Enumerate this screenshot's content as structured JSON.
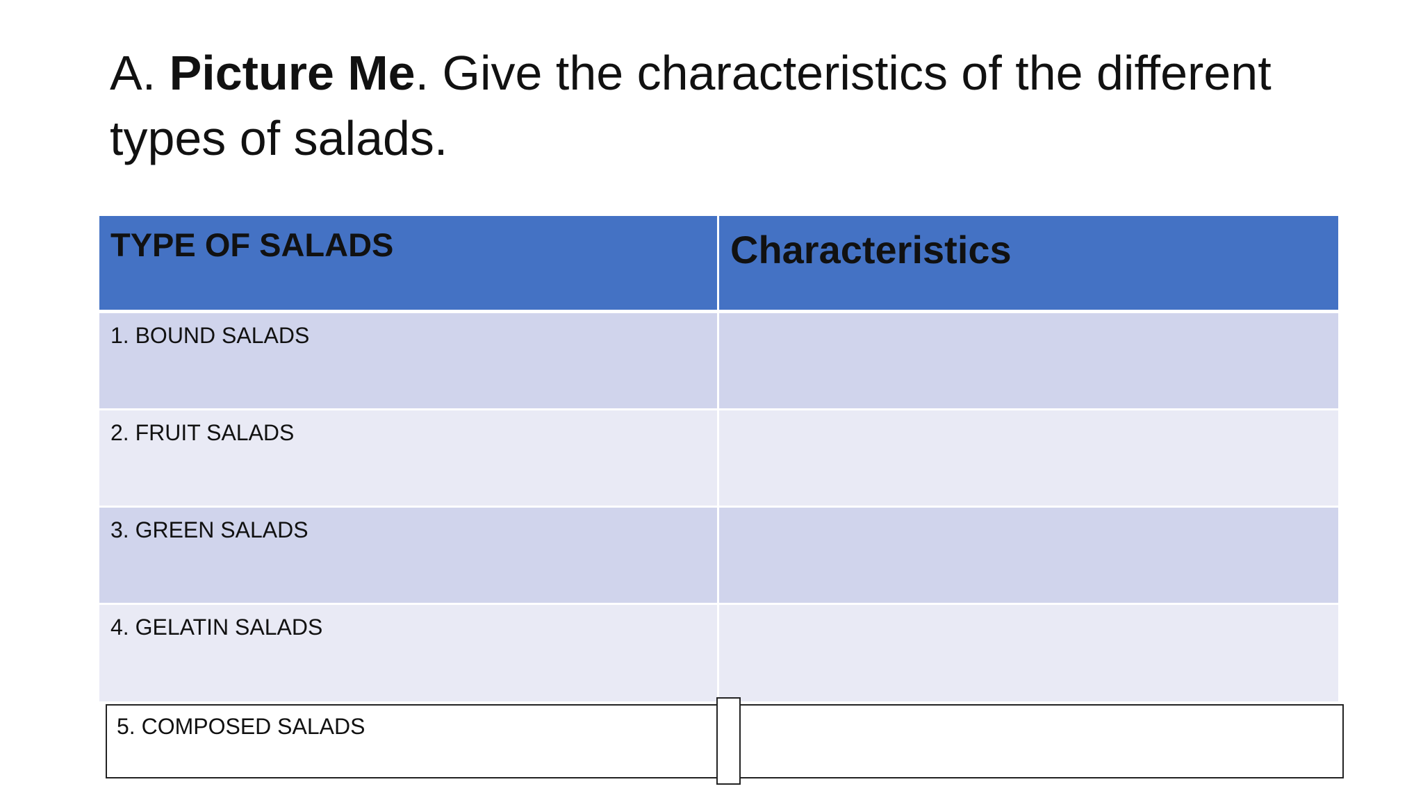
{
  "title": {
    "prefix": "A.",
    "bold": "Picture Me",
    "rest": ". Give the characteristics of the different types of salads."
  },
  "table": {
    "header": [
      "TYPE OF SALADS",
      "Characteristics"
    ],
    "rows": [
      [
        "1. BOUND SALADS"
      ],
      [
        "2. FRUIT SALADS"
      ],
      [
        "3. GREEN SALADS"
      ],
      [
        "4. GELATIN SALADS"
      ],
      [
        "5. COMPOSED SALADS"
      ]
    ]
  }
}
